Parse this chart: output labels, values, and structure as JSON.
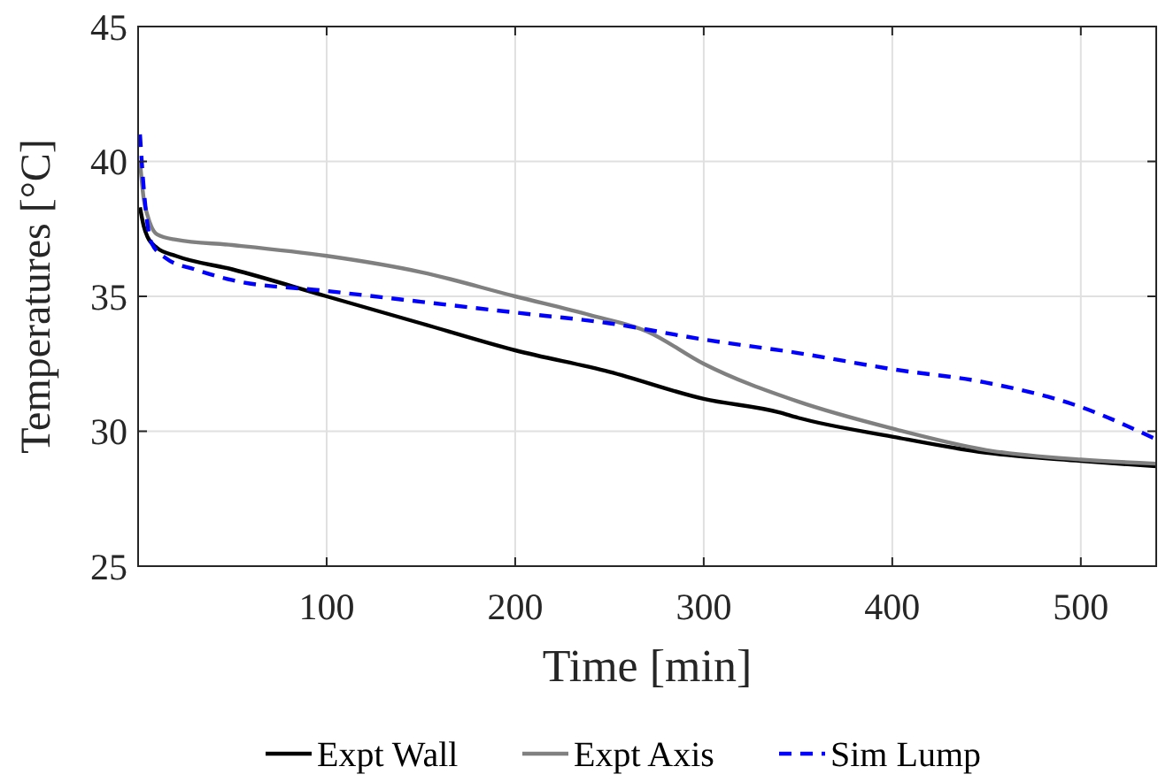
{
  "chart_data": {
    "type": "line",
    "xlabel": "Time [min]",
    "ylabel": "Temperatures [°C]",
    "xlim": [
      0,
      540
    ],
    "ylim": [
      25,
      45
    ],
    "xticks": [
      100,
      200,
      300,
      400,
      500
    ],
    "yticks": [
      25,
      30,
      35,
      40,
      45
    ],
    "grid": true,
    "legend": "bottom",
    "series": [
      {
        "name": "Expt Wall",
        "color": "#000000",
        "line_style": "solid",
        "x": [
          1,
          3,
          5,
          10,
          20,
          50,
          100,
          150,
          200,
          250,
          300,
          340,
          350,
          400,
          450,
          500,
          540
        ],
        "values": [
          38.3,
          37.6,
          37.2,
          36.8,
          36.5,
          36.0,
          35.0,
          34.0,
          33.0,
          32.2,
          31.2,
          30.7,
          30.5,
          29.8,
          29.2,
          28.9,
          28.7
        ]
      },
      {
        "name": "Expt Axis",
        "color": "#808080",
        "line_style": "solid",
        "x": [
          1,
          3,
          5,
          10,
          20,
          50,
          100,
          150,
          200,
          240,
          270,
          300,
          350,
          400,
          450,
          500,
          540
        ],
        "values": [
          40.0,
          38.6,
          38.0,
          37.3,
          37.1,
          36.9,
          36.5,
          35.9,
          35.0,
          34.3,
          33.7,
          32.5,
          31.1,
          30.1,
          29.3,
          28.95,
          28.8
        ]
      },
      {
        "name": "Sim Lump",
        "color": "#0000ff",
        "line_style": "dashed",
        "x": [
          1,
          3,
          7,
          15,
          30,
          50,
          100,
          150,
          200,
          250,
          300,
          350,
          400,
          450,
          500,
          540
        ],
        "values": [
          41.0,
          39.0,
          37.0,
          36.4,
          36.0,
          35.6,
          35.2,
          34.8,
          34.4,
          34.0,
          33.4,
          32.9,
          32.3,
          31.8,
          30.9,
          29.7
        ]
      }
    ]
  }
}
